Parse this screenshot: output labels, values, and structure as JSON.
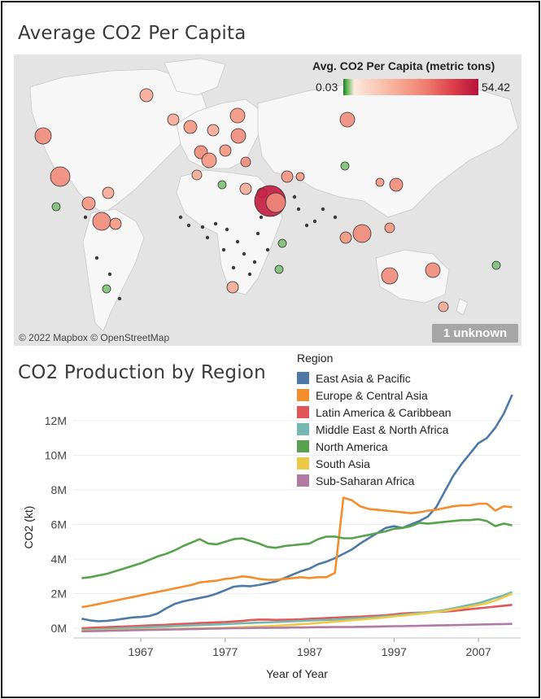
{
  "map_section": {
    "title": "Average CO2 Per Capita",
    "legend_title": "Avg. CO2 Per Capita (metric tons)",
    "legend_min": "0.03",
    "legend_max": "54.42",
    "attribution": "© 2022 Mapbox © OpenStreetMap",
    "unknown_badge": "1 unknown",
    "colors": {
      "low": "#1a7a2a",
      "mid": "#f8b59e",
      "high": "#b5123a"
    }
  },
  "chart_section": {
    "title": "CO2 Production by Region"
  },
  "chart_data": {
    "type": "line",
    "title": "CO2 Production by Region",
    "xlabel": "Year of Year",
    "ylabel": "CO2 (kt)",
    "x_ticks": [
      "1967",
      "1977",
      "1987",
      "1997",
      "2007"
    ],
    "y_ticks": [
      "0M",
      "2M",
      "4M",
      "6M",
      "8M",
      "10M",
      "12M"
    ],
    "ylim": [
      0,
      13000000
    ],
    "xlim": [
      1959,
      2012
    ],
    "legend_title": "Region",
    "legend_position": "top-right",
    "x": [
      1960,
      1961,
      1962,
      1963,
      1964,
      1965,
      1966,
      1967,
      1968,
      1969,
      1970,
      1971,
      1972,
      1973,
      1974,
      1975,
      1976,
      1977,
      1978,
      1979,
      1980,
      1981,
      1982,
      1983,
      1984,
      1985,
      1986,
      1987,
      1988,
      1989,
      1990,
      1991,
      1992,
      1993,
      1994,
      1995,
      1996,
      1997,
      1998,
      1999,
      2000,
      2001,
      2002,
      2003,
      2004,
      2005,
      2006,
      2007,
      2008,
      2009,
      2010,
      2011
    ],
    "series": [
      {
        "name": "East Asia & Pacific",
        "color": "#4e79a7",
        "values": [
          550000,
          450000,
          400000,
          430000,
          480000,
          550000,
          620000,
          650000,
          700000,
          850000,
          1150000,
          1400000,
          1550000,
          1650000,
          1750000,
          1850000,
          2000000,
          2200000,
          2400000,
          2450000,
          2430000,
          2500000,
          2600000,
          2700000,
          2900000,
          3100000,
          3300000,
          3450000,
          3700000,
          3850000,
          4050000,
          4300000,
          4550000,
          4900000,
          5200000,
          5500000,
          5800000,
          5900000,
          5800000,
          6000000,
          6200000,
          6450000,
          7000000,
          7900000,
          8800000,
          9500000,
          10100000,
          10700000,
          11000000,
          11600000,
          12400000,
          13500000
        ]
      },
      {
        "name": "Europe & Central Asia",
        "color": "#f28e2b",
        "values": [
          1220000,
          1300000,
          1400000,
          1500000,
          1600000,
          1700000,
          1800000,
          1900000,
          2000000,
          2100000,
          2200000,
          2300000,
          2400000,
          2500000,
          2650000,
          2700000,
          2750000,
          2850000,
          2900000,
          3000000,
          2950000,
          2850000,
          2800000,
          2800000,
          2850000,
          2900000,
          2950000,
          2900000,
          2950000,
          2950000,
          3200000,
          7550000,
          7400000,
          7050000,
          6900000,
          6850000,
          6800000,
          6750000,
          6700000,
          6650000,
          6700000,
          6800000,
          6850000,
          6950000,
          7050000,
          7100000,
          7100000,
          7200000,
          7200000,
          6800000,
          7050000,
          7000000
        ]
      },
      {
        "name": "Latin America & Caribbean",
        "color": "#e15759",
        "values": [
          0,
          20000,
          40000,
          60000,
          80000,
          100000,
          120000,
          140000,
          160000,
          180000,
          200000,
          230000,
          250000,
          270000,
          300000,
          320000,
          340000,
          360000,
          390000,
          420000,
          470000,
          500000,
          500000,
          480000,
          490000,
          500000,
          520000,
          540000,
          560000,
          590000,
          610000,
          630000,
          650000,
          670000,
          700000,
          720000,
          750000,
          800000,
          850000,
          880000,
          900000,
          920000,
          940000,
          960000,
          1000000,
          1050000,
          1100000,
          1150000,
          1200000,
          1250000,
          1300000,
          1350000
        ]
      },
      {
        "name": "Middle East & North Africa",
        "color": "#76b7b2",
        "values": [
          -100000,
          -80000,
          -60000,
          -40000,
          -20000,
          0,
          20000,
          40000,
          60000,
          80000,
          100000,
          120000,
          140000,
          160000,
          180000,
          200000,
          220000,
          240000,
          260000,
          280000,
          300000,
          320000,
          340000,
          360000,
          380000,
          400000,
          420000,
          440000,
          460000,
          480000,
          500000,
          530000,
          560000,
          590000,
          620000,
          650000,
          690000,
          730000,
          780000,
          830000,
          880000,
          930000,
          980000,
          1050000,
          1150000,
          1250000,
          1350000,
          1450000,
          1600000,
          1750000,
          1900000,
          2100000
        ]
      },
      {
        "name": "North America",
        "color": "#59a14f",
        "values": [
          2900000,
          2950000,
          3050000,
          3150000,
          3300000,
          3450000,
          3600000,
          3750000,
          3950000,
          4150000,
          4300000,
          4500000,
          4750000,
          4950000,
          5150000,
          4900000,
          4850000,
          5000000,
          5150000,
          5200000,
          5050000,
          4900000,
          4700000,
          4650000,
          4750000,
          4800000,
          4850000,
          4900000,
          5150000,
          5300000,
          5300000,
          5200000,
          5200000,
          5300000,
          5400000,
          5500000,
          5600000,
          5750000,
          5800000,
          5900000,
          6100000,
          6050000,
          6100000,
          6150000,
          6200000,
          6250000,
          6250000,
          6300000,
          6200000,
          5900000,
          6050000,
          5950000
        ]
      },
      {
        "name": "South Asia",
        "color": "#edc948",
        "values": [
          -150000,
          -140000,
          -130000,
          -120000,
          -110000,
          -100000,
          -90000,
          -80000,
          -70000,
          -60000,
          -50000,
          -40000,
          -30000,
          -20000,
          -10000,
          0,
          10000,
          20000,
          40000,
          60000,
          80000,
          100000,
          120000,
          140000,
          170000,
          200000,
          230000,
          260000,
          300000,
          340000,
          380000,
          420000,
          460000,
          500000,
          540000,
          580000,
          630000,
          680000,
          730000,
          780000,
          830000,
          880000,
          940000,
          1000000,
          1080000,
          1160000,
          1250000,
          1350000,
          1450000,
          1600000,
          1800000,
          2000000
        ]
      },
      {
        "name": "Sub-Saharan Africa",
        "color": "#b07aa1",
        "values": [
          -180000,
          -170000,
          -160000,
          -150000,
          -140000,
          -130000,
          -120000,
          -110000,
          -100000,
          -90000,
          -80000,
          -70000,
          -60000,
          -50000,
          -40000,
          -30000,
          -20000,
          -10000,
          0,
          0,
          10000,
          20000,
          20000,
          30000,
          30000,
          40000,
          40000,
          50000,
          60000,
          60000,
          70000,
          70000,
          70000,
          80000,
          90000,
          100000,
          110000,
          120000,
          120000,
          130000,
          140000,
          150000,
          160000,
          170000,
          180000,
          190000,
          200000,
          210000,
          220000,
          230000,
          240000,
          250000
        ]
      }
    ]
  }
}
